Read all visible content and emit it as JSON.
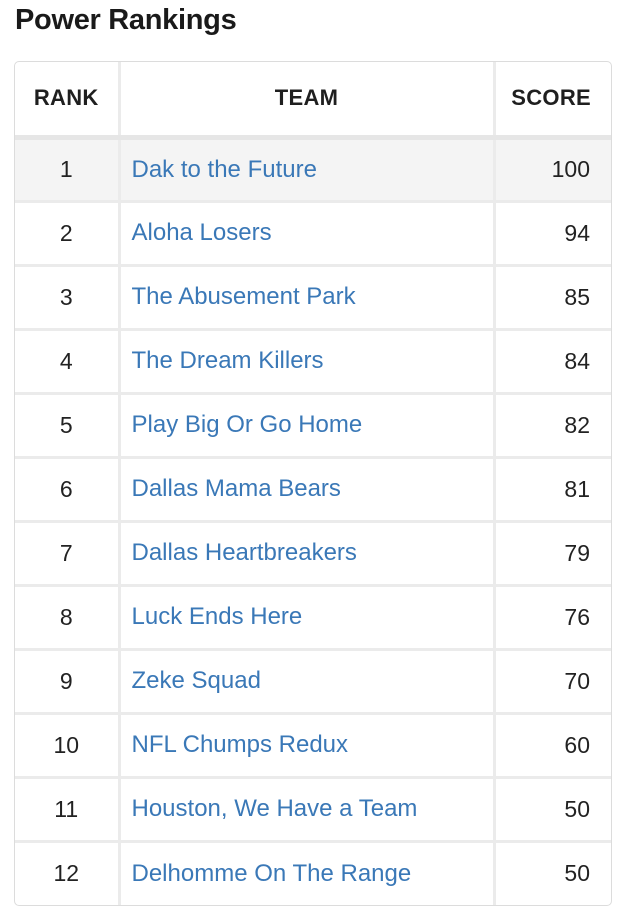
{
  "page_title": "Power Rankings",
  "table": {
    "headers": {
      "rank": "RANK",
      "team": "TEAM",
      "score": "SCORE"
    },
    "rows": [
      {
        "rank": "1",
        "team": "Dak to the Future",
        "score": "100"
      },
      {
        "rank": "2",
        "team": "Aloha Losers",
        "score": "94"
      },
      {
        "rank": "3",
        "team": "The Abusement Park",
        "score": "85"
      },
      {
        "rank": "4",
        "team": "The Dream Killers",
        "score": "84"
      },
      {
        "rank": "5",
        "team": "Play Big Or Go Home",
        "score": "82"
      },
      {
        "rank": "6",
        "team": "Dallas Mama Bears",
        "score": "81"
      },
      {
        "rank": "7",
        "team": "Dallas Heartbreakers",
        "score": "79"
      },
      {
        "rank": "8",
        "team": "Luck Ends Here",
        "score": "76"
      },
      {
        "rank": "9",
        "team": "Zeke Squad",
        "score": "70"
      },
      {
        "rank": "10",
        "team": "NFL Chumps Redux",
        "score": "60"
      },
      {
        "rank": "11",
        "team": "Houston, We Have a Team",
        "score": "50"
      },
      {
        "rank": "12",
        "team": "Delhomme On The Range",
        "score": "50"
      }
    ]
  },
  "colors": {
    "link": "#3a78b7",
    "text": "#222222",
    "first_row_bg": "#f4f4f4",
    "grid": "#ebebeb"
  }
}
